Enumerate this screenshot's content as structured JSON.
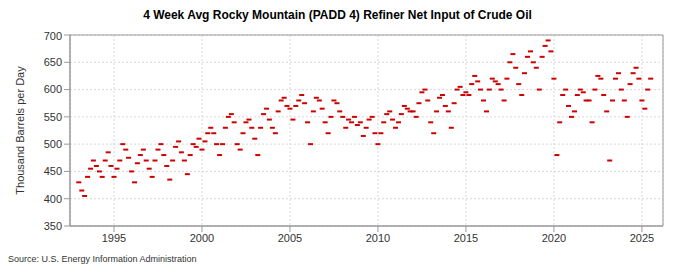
{
  "chart_data": {
    "type": "scatter",
    "title": "4 Week Avg Rocky Mountain (PADD 4) Refiner Net Input of Crude Oil",
    "y_label": "Thousand Barrels per Day",
    "source": "Source: U.S. Energy Information Administration",
    "color": "#cc0000",
    "marker": "dash",
    "grid": true,
    "xlim": [
      1992.5,
      2026.2
    ],
    "xticks": [
      1995,
      2000,
      2005,
      2010,
      2015,
      2020,
      2025
    ],
    "ylim": [
      350,
      700
    ],
    "yticks": [
      350,
      400,
      450,
      500,
      550,
      600,
      650,
      700
    ],
    "x": [
      1993.0,
      1993.17,
      1993.33,
      1993.5,
      1993.67,
      1993.83,
      1994.0,
      1994.17,
      1994.33,
      1994.5,
      1994.67,
      1994.83,
      1995.0,
      1995.17,
      1995.33,
      1995.5,
      1995.67,
      1995.83,
      1996.0,
      1996.17,
      1996.33,
      1996.5,
      1996.67,
      1996.83,
      1997.0,
      1997.17,
      1997.33,
      1997.5,
      1997.67,
      1997.83,
      1998.0,
      1998.17,
      1998.33,
      1998.5,
      1998.67,
      1998.83,
      1999.0,
      1999.17,
      1999.33,
      1999.5,
      1999.67,
      1999.83,
      2000.0,
      2000.17,
      2000.33,
      2000.5,
      2000.67,
      2000.83,
      2001.0,
      2001.17,
      2001.33,
      2001.5,
      2001.67,
      2001.83,
      2002.0,
      2002.17,
      2002.33,
      2002.5,
      2002.67,
      2002.83,
      2003.0,
      2003.17,
      2003.33,
      2003.5,
      2003.67,
      2003.83,
      2004.0,
      2004.17,
      2004.33,
      2004.5,
      2004.67,
      2004.83,
      2005.0,
      2005.17,
      2005.33,
      2005.5,
      2005.67,
      2005.83,
      2006.0,
      2006.17,
      2006.33,
      2006.5,
      2006.67,
      2006.83,
      2007.0,
      2007.17,
      2007.33,
      2007.5,
      2007.67,
      2007.83,
      2008.0,
      2008.17,
      2008.33,
      2008.5,
      2008.67,
      2008.83,
      2009.0,
      2009.17,
      2009.33,
      2009.5,
      2009.67,
      2009.83,
      2010.0,
      2010.17,
      2010.33,
      2010.5,
      2010.67,
      2010.83,
      2011.0,
      2011.17,
      2011.33,
      2011.5,
      2011.67,
      2011.83,
      2012.0,
      2012.17,
      2012.33,
      2012.5,
      2012.67,
      2012.83,
      2013.0,
      2013.17,
      2013.33,
      2013.5,
      2013.67,
      2013.83,
      2014.0,
      2014.17,
      2014.33,
      2014.5,
      2014.67,
      2014.83,
      2015.0,
      2015.17,
      2015.33,
      2015.5,
      2015.67,
      2015.83,
      2016.0,
      2016.17,
      2016.33,
      2016.5,
      2016.67,
      2016.83,
      2017.0,
      2017.17,
      2017.33,
      2017.5,
      2017.67,
      2017.83,
      2018.0,
      2018.17,
      2018.33,
      2018.5,
      2018.67,
      2018.83,
      2019.0,
      2019.17,
      2019.33,
      2019.5,
      2019.67,
      2019.83,
      2020.0,
      2020.17,
      2020.33,
      2020.5,
      2020.67,
      2020.83,
      2021.0,
      2021.17,
      2021.33,
      2021.5,
      2021.67,
      2021.83,
      2022.0,
      2022.17,
      2022.33,
      2022.5,
      2022.67,
      2022.83,
      2023.0,
      2023.17,
      2023.33,
      2023.5,
      2023.67,
      2023.83,
      2024.0,
      2024.17,
      2024.33,
      2024.5,
      2024.67,
      2024.83,
      2025.0,
      2025.17,
      2025.33,
      2025.5
    ],
    "values": [
      430,
      415,
      405,
      440,
      455,
      470,
      460,
      450,
      440,
      470,
      485,
      460,
      440,
      455,
      470,
      500,
      490,
      475,
      450,
      430,
      465,
      480,
      490,
      470,
      455,
      440,
      470,
      490,
      500,
      480,
      460,
      435,
      470,
      495,
      505,
      485,
      470,
      445,
      480,
      500,
      495,
      510,
      490,
      505,
      520,
      530,
      520,
      500,
      480,
      500,
      530,
      550,
      555,
      540,
      500,
      490,
      520,
      540,
      545,
      530,
      510,
      480,
      530,
      555,
      565,
      545,
      530,
      520,
      560,
      580,
      585,
      570,
      565,
      545,
      570,
      580,
      590,
      575,
      540,
      500,
      560,
      585,
      580,
      565,
      540,
      520,
      550,
      580,
      575,
      560,
      550,
      530,
      545,
      540,
      550,
      535,
      540,
      515,
      530,
      545,
      550,
      520,
      500,
      520,
      540,
      555,
      560,
      545,
      530,
      540,
      555,
      570,
      565,
      560,
      560,
      550,
      575,
      595,
      600,
      580,
      540,
      520,
      560,
      585,
      590,
      570,
      560,
      530,
      575,
      600,
      605,
      590,
      595,
      590,
      610,
      625,
      615,
      600,
      580,
      560,
      600,
      620,
      615,
      610,
      600,
      580,
      620,
      650,
      665,
      640,
      610,
      590,
      630,
      660,
      670,
      650,
      640,
      600,
      660,
      680,
      690,
      670,
      620,
      480,
      540,
      590,
      600,
      570,
      550,
      560,
      590,
      600,
      595,
      580,
      580,
      540,
      600,
      625,
      620,
      590,
      560,
      470,
      580,
      620,
      630,
      600,
      580,
      550,
      610,
      630,
      640,
      620,
      580,
      565,
      600,
      620
    ]
  }
}
